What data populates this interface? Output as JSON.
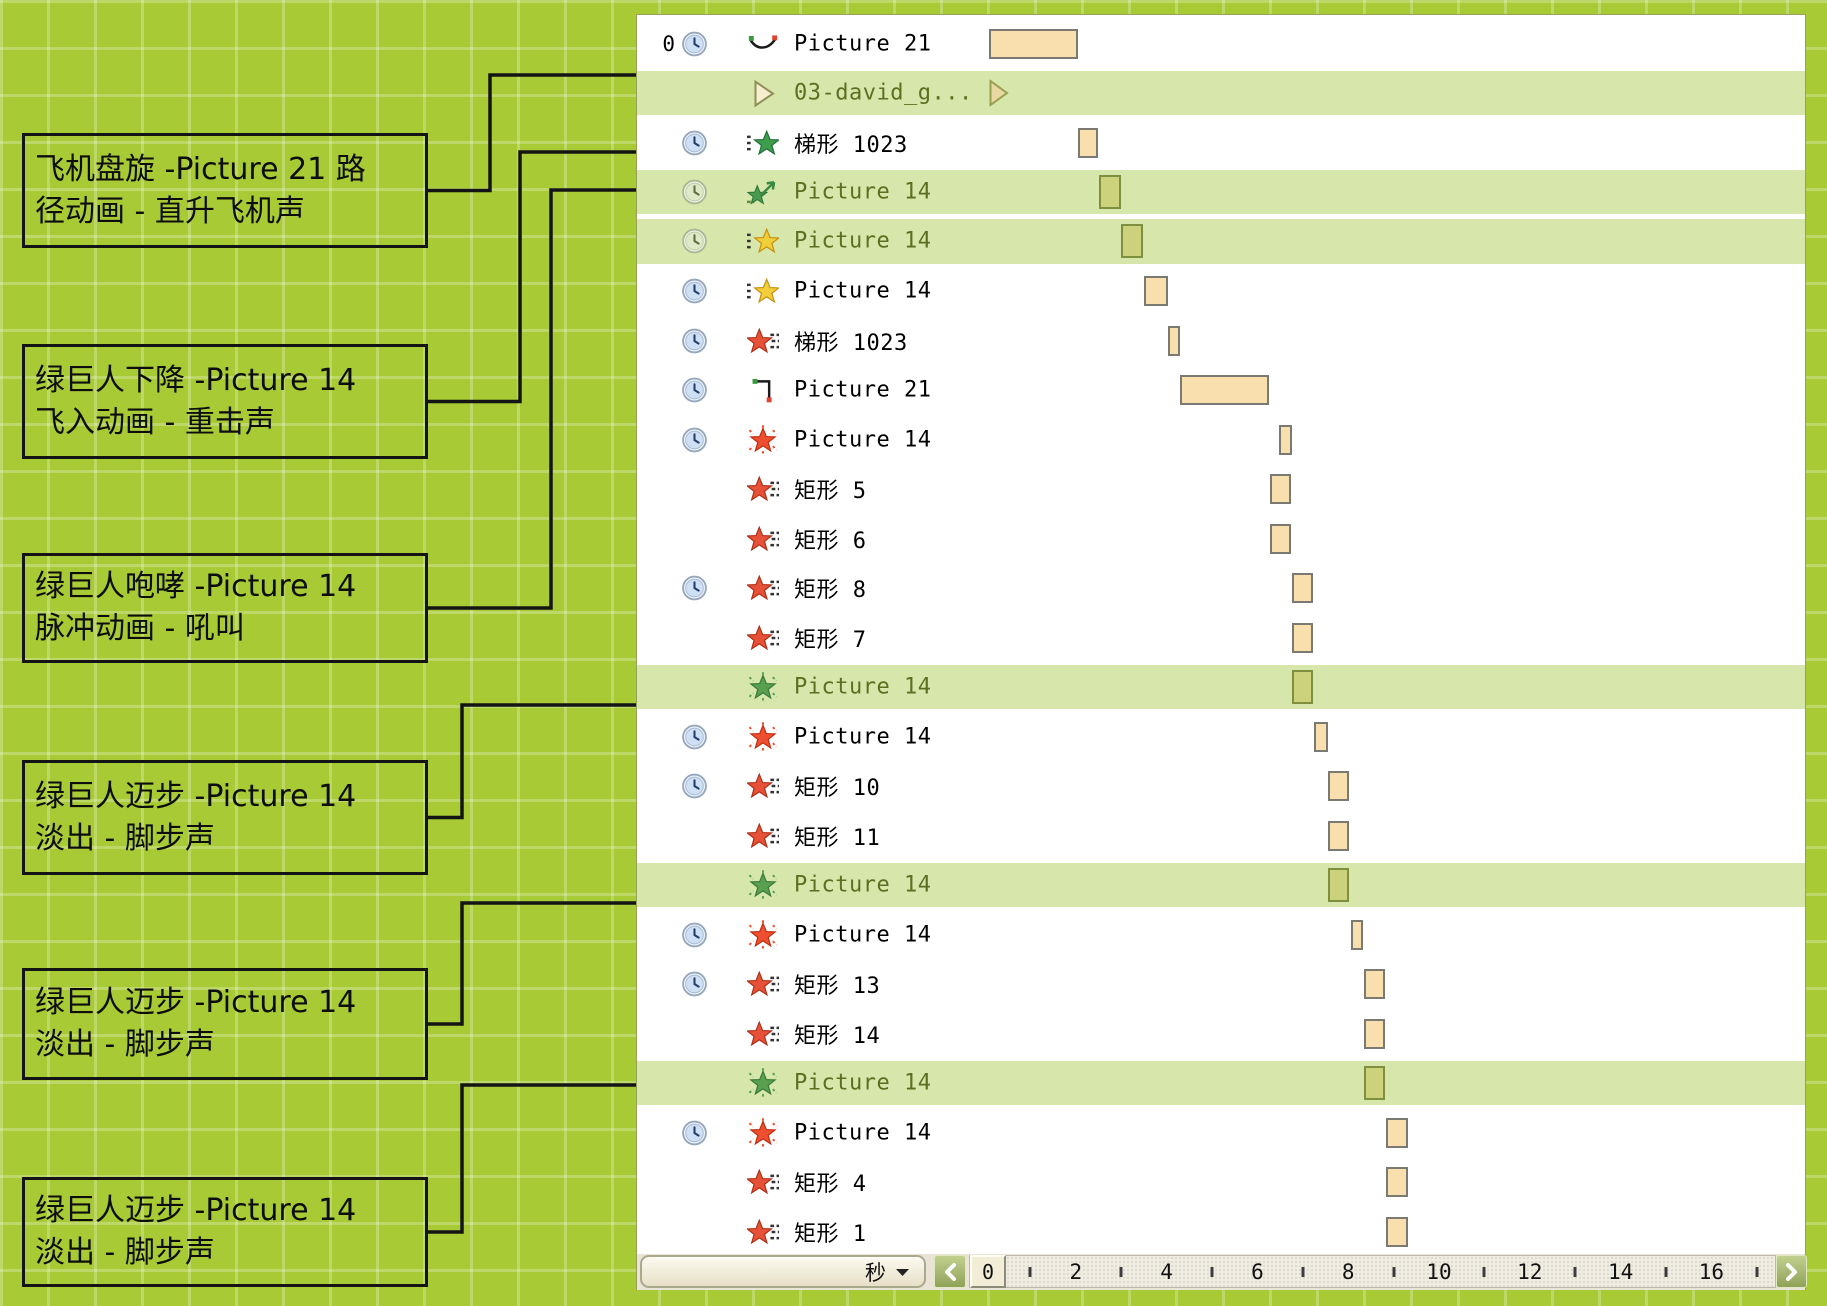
{
  "annotations": {
    "callouts": [
      {
        "lines": [
          "飞机盘旋 -Picture 21 路",
          "径动画 - 直升飞机声"
        ],
        "connects_row_index": 1
      },
      {
        "lines": [
          "绿巨人下降 -Picture 14",
          "飞入动画 - 重击声"
        ],
        "connects_row_index": 3
      },
      {
        "lines": [
          "绿巨人咆哮 -Picture 14",
          "脉冲动画 - 吼叫"
        ],
        "connects_row_index": 4
      },
      {
        "lines": [
          "绿巨人迈步 -Picture 14",
          "淡出 - 脚步声"
        ],
        "connects_row_index": 13
      },
      {
        "lines": [
          "绿巨人迈步 -Picture 14",
          "淡出 - 脚步声"
        ],
        "connects_row_index": 17
      },
      {
        "lines": [
          "绿巨人迈步 -Picture 14",
          "淡出 - 脚步声"
        ],
        "connects_row_index": 21
      }
    ]
  },
  "panel": {
    "rows": [
      {
        "number": "0",
        "clock": "blue",
        "icon": "motion-path-curve",
        "label": "Picture 21",
        "highlight": false,
        "bar": {
          "kind": "block",
          "color": "tan",
          "start": 0.1,
          "end": 2.08
        }
      },
      {
        "number": null,
        "clock": null,
        "icon": "play-triangle",
        "label": "03-david_g...",
        "highlight": true,
        "bar": {
          "kind": "trigger",
          "start": 0.1,
          "end": 0.55
        }
      },
      {
        "number": null,
        "clock": "blue",
        "icon": "star-entrance-green",
        "label": "梯形 1023",
        "highlight": false,
        "bar": {
          "kind": "block",
          "color": "tan",
          "start": 2.07,
          "end": 2.51
        }
      },
      {
        "number": null,
        "clock": "pale",
        "icon": "star-fly-green",
        "label": "Picture 14",
        "highlight": true,
        "bar": {
          "kind": "block",
          "color": "olive",
          "start": 2.53,
          "end": 3.02
        }
      },
      {
        "number": null,
        "clock": "pale",
        "icon": "star-entrance-yellow",
        "label": "Picture 14",
        "highlight": true,
        "bar": {
          "kind": "block",
          "color": "olive",
          "start": 3.02,
          "end": 3.5
        }
      },
      {
        "number": null,
        "clock": "blue",
        "icon": "star-entrance-yellow",
        "label": "Picture 14",
        "highlight": false,
        "bar": {
          "kind": "block",
          "color": "tan",
          "start": 3.52,
          "end": 4.05
        }
      },
      {
        "number": null,
        "clock": "blue",
        "icon": "star-exit-red",
        "label": "梯形 1023",
        "highlight": false,
        "bar": {
          "kind": "block",
          "color": "tan",
          "start": 4.05,
          "end": 4.32
        }
      },
      {
        "number": null,
        "clock": "blue",
        "icon": "motion-path-corner",
        "label": "Picture 21",
        "highlight": false,
        "bar": {
          "kind": "block",
          "color": "tan",
          "start": 4.32,
          "end": 6.28
        }
      },
      {
        "number": null,
        "clock": "blue",
        "icon": "starburst-red",
        "label": "Picture 14",
        "highlight": false,
        "bar": {
          "kind": "block",
          "color": "tan",
          "start": 6.5,
          "end": 6.78
        }
      },
      {
        "number": null,
        "clock": null,
        "icon": "star-exit-red",
        "label": "矩形 5",
        "highlight": false,
        "bar": {
          "kind": "block",
          "color": "tan",
          "start": 6.3,
          "end": 6.76
        }
      },
      {
        "number": null,
        "clock": null,
        "icon": "star-exit-red",
        "label": "矩形 6",
        "highlight": false,
        "bar": {
          "kind": "block",
          "color": "tan",
          "start": 6.3,
          "end": 6.76
        }
      },
      {
        "number": null,
        "clock": "blue",
        "icon": "star-exit-red",
        "label": "矩形 8",
        "highlight": false,
        "bar": {
          "kind": "block",
          "color": "tan",
          "start": 6.78,
          "end": 7.25
        }
      },
      {
        "number": null,
        "clock": null,
        "icon": "star-exit-red",
        "label": "矩形 7",
        "highlight": false,
        "bar": {
          "kind": "block",
          "color": "tan",
          "start": 6.78,
          "end": 7.25
        }
      },
      {
        "number": null,
        "clock": null,
        "icon": "starburst-green",
        "label": "Picture 14",
        "highlight": true,
        "bar": {
          "kind": "block",
          "color": "olive",
          "start": 6.78,
          "end": 7.25
        }
      },
      {
        "number": null,
        "clock": "blue",
        "icon": "starburst-red",
        "label": "Picture 14",
        "highlight": false,
        "bar": {
          "kind": "block",
          "color": "tan",
          "start": 7.27,
          "end": 7.58
        }
      },
      {
        "number": null,
        "clock": "blue",
        "icon": "star-exit-red",
        "label": "矩形 10",
        "highlight": false,
        "bar": {
          "kind": "block",
          "color": "tan",
          "start": 7.58,
          "end": 8.04
        }
      },
      {
        "number": null,
        "clock": null,
        "icon": "star-exit-red",
        "label": "矩形 11",
        "highlight": false,
        "bar": {
          "kind": "block",
          "color": "tan",
          "start": 7.58,
          "end": 8.04
        }
      },
      {
        "number": null,
        "clock": null,
        "icon": "starburst-green",
        "label": "Picture 14",
        "highlight": true,
        "bar": {
          "kind": "block",
          "color": "olive",
          "start": 7.58,
          "end": 8.04
        }
      },
      {
        "number": null,
        "clock": "blue",
        "icon": "starburst-red",
        "label": "Picture 14",
        "highlight": false,
        "bar": {
          "kind": "block",
          "color": "tan",
          "start": 8.08,
          "end": 8.35
        }
      },
      {
        "number": null,
        "clock": "blue",
        "icon": "star-exit-red",
        "label": "矩形 13",
        "highlight": false,
        "bar": {
          "kind": "block",
          "color": "tan",
          "start": 8.37,
          "end": 8.83
        }
      },
      {
        "number": null,
        "clock": null,
        "icon": "star-exit-red",
        "label": "矩形 14",
        "highlight": false,
        "bar": {
          "kind": "block",
          "color": "tan",
          "start": 8.37,
          "end": 8.83
        }
      },
      {
        "number": null,
        "clock": null,
        "icon": "starburst-green",
        "label": "Picture 14",
        "highlight": true,
        "bar": {
          "kind": "block",
          "color": "olive",
          "start": 8.37,
          "end": 8.83
        }
      },
      {
        "number": null,
        "clock": "blue",
        "icon": "starburst-red",
        "label": "Picture 14",
        "highlight": false,
        "bar": {
          "kind": "block",
          "color": "tan",
          "start": 8.85,
          "end": 9.34
        }
      },
      {
        "number": null,
        "clock": null,
        "icon": "star-exit-red",
        "label": "矩形 4",
        "highlight": false,
        "bar": {
          "kind": "block",
          "color": "tan",
          "start": 8.85,
          "end": 9.34
        }
      },
      {
        "number": null,
        "clock": null,
        "icon": "star-exit-red",
        "label": "矩形 1",
        "highlight": false,
        "bar": {
          "kind": "block",
          "color": "tan",
          "start": 8.85,
          "end": 9.34
        }
      }
    ],
    "ruler": {
      "unit_label": "秒",
      "origin_label": "0",
      "major_numbers": [
        "2",
        "4",
        "6",
        "8",
        "10",
        "12",
        "14",
        "16"
      ],
      "minor_tick_seconds": [
        1,
        3,
        5,
        7,
        9,
        11,
        13,
        15,
        17
      ],
      "seconds_visible_range": [
        0,
        17.5
      ]
    }
  },
  "colors": {
    "background_green": "#a7ca35",
    "row_highlight": "#d7e6ab",
    "bar_tan": "#f8dfad",
    "bar_olive": "#ccd17b",
    "bar_border": "#7a7a72",
    "olive_border": "#7e8f3e"
  }
}
